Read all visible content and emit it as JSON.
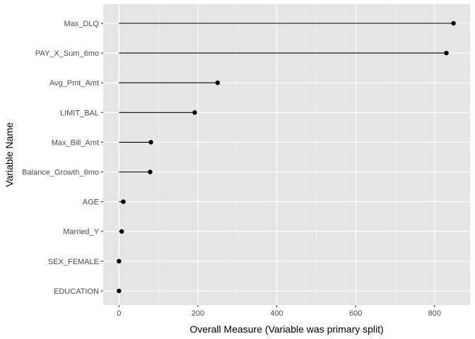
{
  "chart_data": {
    "type": "lollipop",
    "orientation": "horizontal",
    "xlabel": "Overall Measure (Variable was primary split)",
    "ylabel": "Variable Name",
    "xlim": [
      -40,
      890
    ],
    "x_ticks": [
      0,
      200,
      400,
      600,
      800
    ],
    "grid": true,
    "categories": [
      "Max_DLQ",
      "PAY_X_Sum_6mo",
      "Avg_Pmt_Amt",
      "LIMIT_BAL",
      "Max_Bill_Amt",
      "Balance_Growth_6mo",
      "AGE",
      "Married_Y",
      "SEX_FEMALE",
      "EDUCATION"
    ],
    "values": [
      848,
      830,
      250,
      192,
      81,
      79,
      11,
      7,
      0,
      0
    ],
    "colors": {
      "panel_background": "#e5e5e5",
      "grid_major": "#ffffff",
      "segment": "#000000",
      "point": "#000000"
    }
  }
}
